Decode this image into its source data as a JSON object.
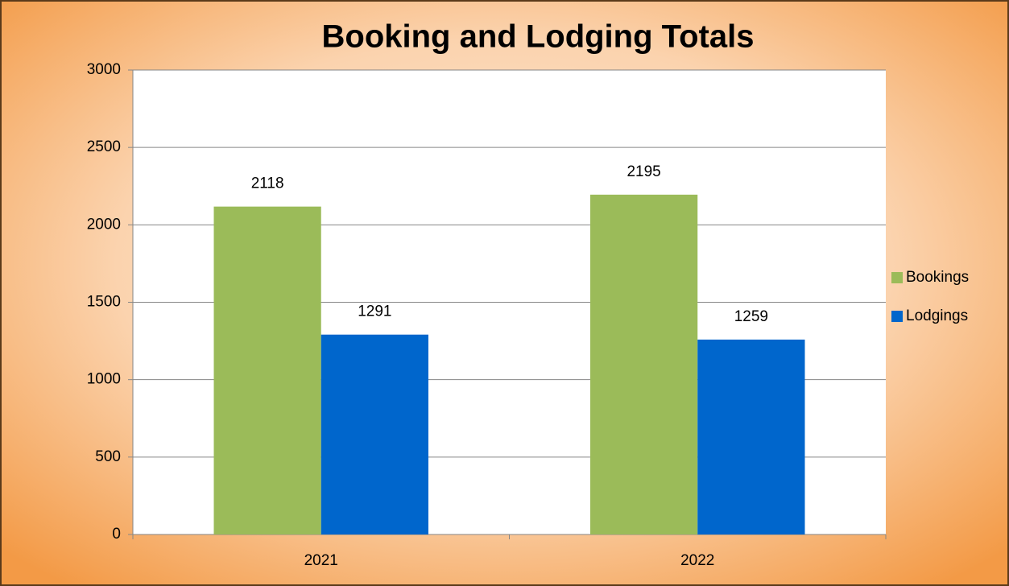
{
  "chart_data": {
    "type": "bar",
    "title": "Booking and Lodging Totals",
    "categories": [
      "2021",
      "2022"
    ],
    "series": [
      {
        "name": "Bookings",
        "color": "#9bbb59",
        "values": [
          2118,
          2195
        ]
      },
      {
        "name": "Lodgings",
        "color": "#0066cc",
        "values": [
          1291,
          1259
        ]
      }
    ],
    "ylim": [
      0,
      3000
    ],
    "yticks": [
      0,
      500,
      1000,
      1500,
      2000,
      2500,
      3000
    ],
    "grid": true,
    "legend": "right"
  }
}
